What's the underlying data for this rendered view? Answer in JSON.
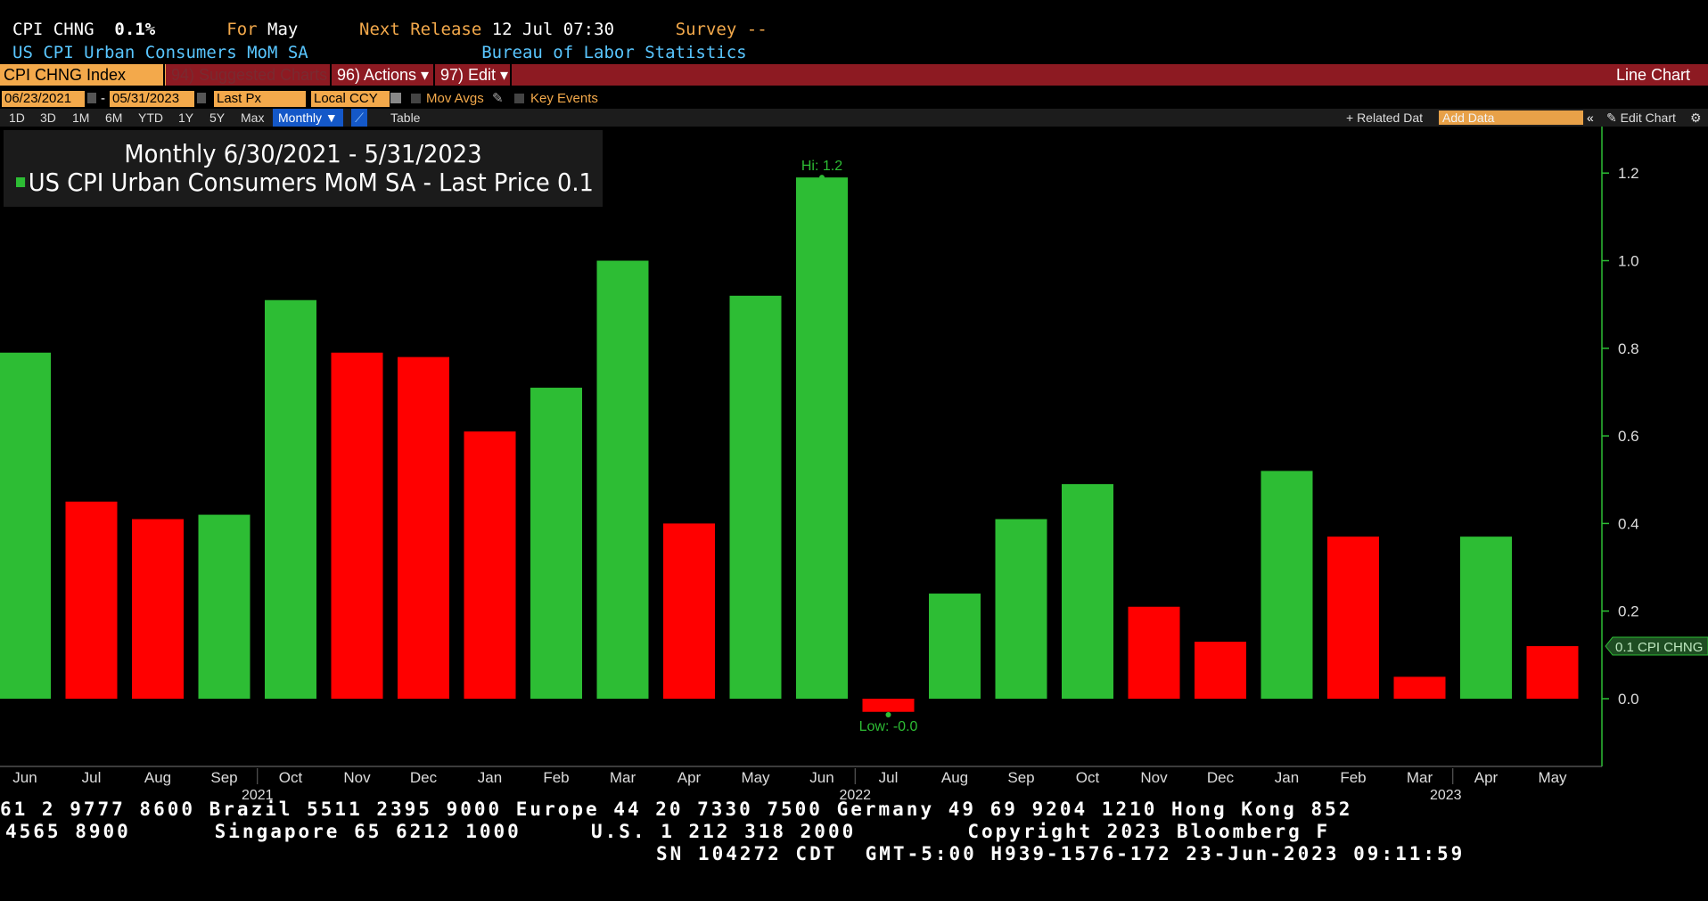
{
  "header": {
    "ticker_code": "CPI CHNG",
    "last_value": "0.1%",
    "for_label": "For",
    "for_value": "May",
    "next_release_label": "Next Release",
    "next_release_value": "12 Jul 07:30",
    "survey_label": "Survey",
    "survey_value": "--",
    "series_name": "US CPI Urban Consumers MoM SA",
    "source": "Bureau of Labor Statistics"
  },
  "menubar": {
    "security": "CPI CHNG Index",
    "suggested": "94) Suggested Charts",
    "actions": "96) Actions ▾",
    "edit": "97) Edit ▾",
    "chart_type": "Line Chart"
  },
  "controls": {
    "start_date": "06/23/2021",
    "dash": "-",
    "end_date": "05/31/2023",
    "price_field": "Last Px",
    "currency": "Local CCY",
    "mov_avgs": "Mov Avgs",
    "key_events": "Key Events",
    "periods": [
      "1D",
      "3D",
      "1M",
      "6M",
      "YTD",
      "1Y",
      "5Y",
      "Max"
    ],
    "frequency": "Monthly ▼",
    "table": "Table",
    "related_data": "+ Related Dat",
    "add_data_placeholder": "Add Data",
    "edit_chart": "✎ Edit Chart"
  },
  "chart_data": {
    "type": "bar",
    "title": "Monthly 6/30/2021 - 5/31/2023",
    "series": [
      {
        "name": "US CPI Urban Consumers MoM SA - Last Price",
        "last_value": "0.1",
        "values": [
          0.79,
          0.45,
          0.41,
          0.42,
          0.91,
          0.79,
          0.78,
          0.61,
          0.71,
          1.0,
          0.4,
          0.92,
          1.19,
          -0.03,
          0.24,
          0.41,
          0.49,
          0.21,
          0.13,
          0.52,
          0.37,
          0.05,
          0.37,
          0.12
        ]
      }
    ],
    "categories": [
      "Jun",
      "Jul",
      "Aug",
      "Sep",
      "Oct",
      "Nov",
      "Dec",
      "Jan",
      "Feb",
      "Mar",
      "Apr",
      "May",
      "Jun",
      "Jul",
      "Aug",
      "Sep",
      "Oct",
      "Nov",
      "Dec",
      "Jan",
      "Feb",
      "Mar",
      "Apr",
      "May"
    ],
    "year_labels": [
      {
        "after_index": 3,
        "label": "2021"
      },
      {
        "after_index": 12,
        "label": "2022"
      },
      {
        "after_index": 21,
        "label": "2023"
      }
    ],
    "ylim": [
      -0.15,
      1.3
    ],
    "yticks": [
      0.0,
      0.2,
      0.4,
      0.6,
      0.8,
      1.0,
      1.2
    ],
    "hi_label": "Hi: 1.2",
    "low_label": "Low: -0.0",
    "last_tag": "0.1 CPI CHNG",
    "colors": {
      "up": "#2dbd34",
      "down": "#ff0000",
      "axis": "#2dbd34"
    }
  },
  "footer": {
    "line1": "61 2 9777 8600 Brazil 5511 2395 9000 Europe 44 20 7330 7500 Germany 49 69 9204 1210 Hong Kong 852",
    "line2": "4565 8900      Singapore 65 6212 1000     U.S. 1 212 318 2000        Copyright 2023 Bloomberg F",
    "line3": "SN 104272 CDT  GMT-5:00 H939-1576-172 23-Jun-2023 09:11:59"
  }
}
